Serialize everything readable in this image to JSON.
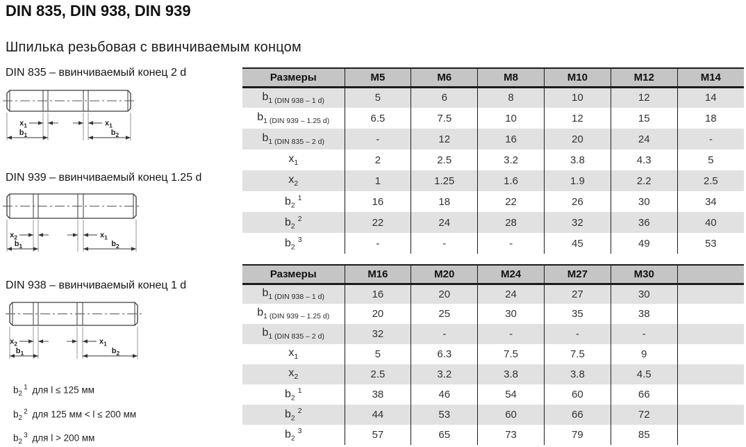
{
  "page": {
    "title": "DIN 835, DIN 938, DIN 939",
    "subtitle": "Шпилька резьбовая с ввинчиваемым концом"
  },
  "drawings": [
    {
      "label": "DIN 835 – ввинчиваемый конец 2 d",
      "dims": {
        "left_x": {
          "base": "x",
          "sub": "1"
        },
        "right_x": {
          "base": "x",
          "sub": "1"
        },
        "left_b": {
          "base": "b",
          "sub": "1"
        },
        "right_b": {
          "base": "b",
          "sub": "2"
        }
      }
    },
    {
      "label": "DIN 939 – ввинчиваемый конец 1.25 d",
      "dims": {
        "left_x": {
          "base": "x",
          "sub": "2"
        },
        "right_x": {
          "base": "x",
          "sub": "1"
        },
        "left_b": {
          "base": "b",
          "sub": "1"
        },
        "right_b": {
          "base": "b",
          "sub": "2"
        }
      }
    },
    {
      "label": "DIN 938 – ввинчиваемый конец 1 d",
      "dims": {
        "left_x": {
          "base": "x",
          "sub": "2"
        },
        "right_x": {
          "base": "x",
          "sub": "1"
        },
        "left_b": {
          "base": "b",
          "sub": "1"
        },
        "right_b": {
          "base": "b",
          "sub": "2"
        }
      }
    }
  ],
  "footnotes": [
    {
      "base": "b",
      "sub": "2",
      "sup": "1",
      "text": "для l ≤ 125 мм"
    },
    {
      "base": "b",
      "sub": "2",
      "sup": "2",
      "text": "для 125 мм < l ≤ 200 мм"
    },
    {
      "base": "b",
      "sub": "2",
      "sup": "3",
      "text": "для l > 200 мм"
    }
  ],
  "tables": [
    {
      "header": [
        "Размеры",
        "M5",
        "M6",
        "M8",
        "M10",
        "M12",
        "M14"
      ],
      "rows": [
        {
          "label": {
            "base": "b",
            "sub": "1 (DIN 938 – 1 d)",
            "sup": ""
          },
          "values": [
            "5",
            "6",
            "8",
            "10",
            "12",
            "14"
          ]
        },
        {
          "label": {
            "base": "b",
            "sub": "1 (DIN 939 – 1.25 d)",
            "sup": ""
          },
          "values": [
            "6.5",
            "7.5",
            "10",
            "12",
            "15",
            "18"
          ]
        },
        {
          "label": {
            "base": "b",
            "sub": "1 (DIN 835 – 2 d)",
            "sup": ""
          },
          "values": [
            "-",
            "12",
            "16",
            "20",
            "24",
            "-"
          ]
        },
        {
          "label": {
            "base": "x",
            "sub": "1",
            "sup": ""
          },
          "values": [
            "2",
            "2.5",
            "3.2",
            "3.8",
            "4.3",
            "5"
          ]
        },
        {
          "label": {
            "base": "x",
            "sub": "2",
            "sup": ""
          },
          "values": [
            "1",
            "1.25",
            "1.6",
            "1.9",
            "2.2",
            "2.5"
          ]
        },
        {
          "label": {
            "base": "b",
            "sub": "2",
            "sup": "1"
          },
          "values": [
            "16",
            "18",
            "22",
            "26",
            "30",
            "34"
          ]
        },
        {
          "label": {
            "base": "b",
            "sub": "2",
            "sup": "2"
          },
          "values": [
            "22",
            "24",
            "28",
            "32",
            "36",
            "40"
          ]
        },
        {
          "label": {
            "base": "b",
            "sub": "2",
            "sup": "3"
          },
          "values": [
            "-",
            "-",
            "-",
            "45",
            "49",
            "53"
          ]
        }
      ]
    },
    {
      "header": [
        "Размеры",
        "M16",
        "M20",
        "M24",
        "M27",
        "M30",
        ""
      ],
      "rows": [
        {
          "label": {
            "base": "b",
            "sub": "1 (DIN 938 – 1 d)",
            "sup": ""
          },
          "values": [
            "16",
            "20",
            "24",
            "27",
            "30",
            ""
          ]
        },
        {
          "label": {
            "base": "b",
            "sub": "1 (DIN 939 – 1.25 d)",
            "sup": ""
          },
          "values": [
            "20",
            "25",
            "30",
            "35",
            "38",
            ""
          ]
        },
        {
          "label": {
            "base": "b",
            "sub": "1 (DIN 835 – 2 d)",
            "sup": ""
          },
          "values": [
            "32",
            "-",
            "-",
            "-",
            "-",
            ""
          ]
        },
        {
          "label": {
            "base": "x",
            "sub": "1",
            "sup": ""
          },
          "values": [
            "5",
            "6.3",
            "7.5",
            "7.5",
            "9",
            ""
          ]
        },
        {
          "label": {
            "base": "x",
            "sub": "2",
            "sup": ""
          },
          "values": [
            "2.5",
            "3.2",
            "3.8",
            "3.8",
            "4.5",
            ""
          ]
        },
        {
          "label": {
            "base": "b",
            "sub": "2",
            "sup": "1"
          },
          "values": [
            "38",
            "46",
            "54",
            "60",
            "66",
            ""
          ]
        },
        {
          "label": {
            "base": "b",
            "sub": "2",
            "sup": "2"
          },
          "values": [
            "44",
            "53",
            "60",
            "66",
            "72",
            ""
          ]
        },
        {
          "label": {
            "base": "b",
            "sub": "2",
            "sup": "3"
          },
          "values": [
            "57",
            "65",
            "73",
            "79",
            "85",
            ""
          ]
        }
      ]
    }
  ],
  "colors": {
    "header_bg": "#c5c5c5",
    "row_alt_bg": "#e1e1e1",
    "table_border": "#1b1b1b",
    "text": "#323232"
  }
}
